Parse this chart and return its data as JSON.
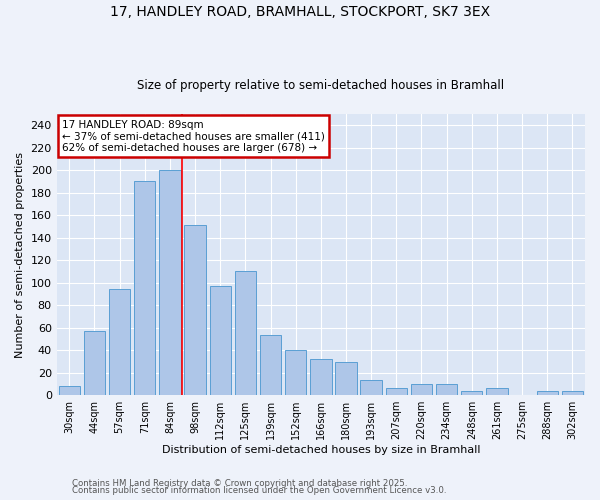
{
  "title1": "17, HANDLEY ROAD, BRAMHALL, STOCKPORT, SK7 3EX",
  "title2": "Size of property relative to semi-detached houses in Bramhall",
  "xlabel": "Distribution of semi-detached houses by size in Bramhall",
  "ylabel": "Number of semi-detached properties",
  "categories": [
    "30sqm",
    "44sqm",
    "57sqm",
    "71sqm",
    "84sqm",
    "98sqm",
    "112sqm",
    "125sqm",
    "139sqm",
    "152sqm",
    "166sqm",
    "180sqm",
    "193sqm",
    "207sqm",
    "220sqm",
    "234sqm",
    "248sqm",
    "261sqm",
    "275sqm",
    "288sqm",
    "302sqm"
  ],
  "values": [
    8,
    57,
    94,
    190,
    200,
    151,
    97,
    110,
    53,
    40,
    32,
    29,
    13,
    6,
    10,
    10,
    4,
    6,
    0,
    4,
    4
  ],
  "bar_color": "#aec6e8",
  "bar_edge_color": "#5a9fd4",
  "red_line_x": 4.5,
  "annotation_title": "17 HANDLEY ROAD: 89sqm",
  "annotation_line1": "← 37% of semi-detached houses are smaller (411)",
  "annotation_line2": "62% of semi-detached houses are larger (678) →",
  "annotation_box_facecolor": "#ffffff",
  "annotation_box_edgecolor": "#cc0000",
  "ylim": [
    0,
    250
  ],
  "yticks": [
    0,
    20,
    40,
    60,
    80,
    100,
    120,
    140,
    160,
    180,
    200,
    220,
    240
  ],
  "plot_bgcolor": "#dce6f5",
  "fig_bgcolor": "#eef2fa",
  "footer1": "Contains HM Land Registry data © Crown copyright and database right 2025.",
  "footer2": "Contains public sector information licensed under the Open Government Licence v3.0."
}
